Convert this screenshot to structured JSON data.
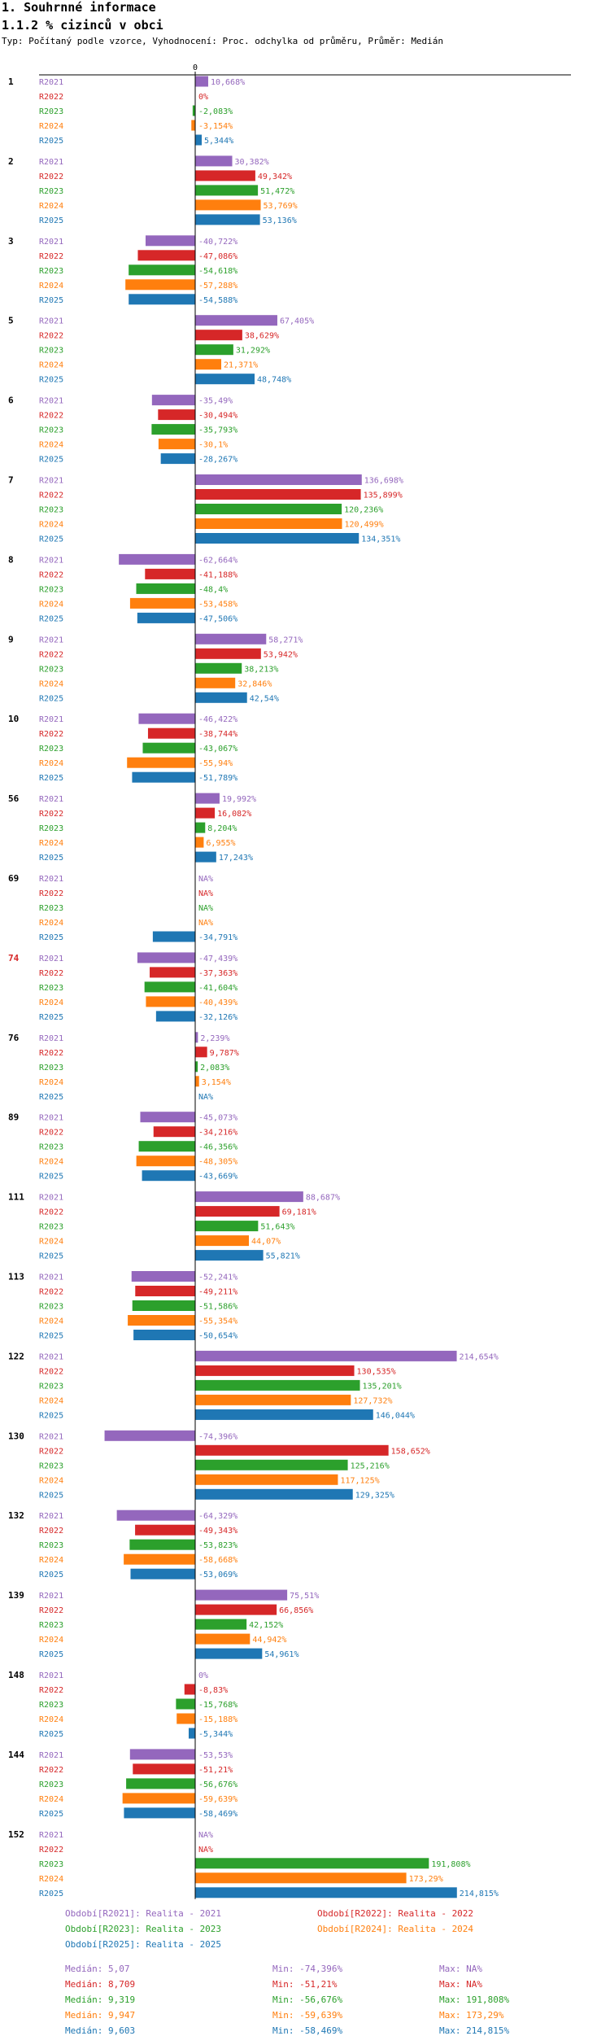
{
  "header": {
    "title": "1. Souhrnné informace",
    "subtitle": "1.1.2 % cizinců v obci",
    "description": "Typ: Počítaný podle vzorce, Vyhodnocení: Proc. odchylka od průměru, Průměr: Medián"
  },
  "colors": {
    "R2021": "#9467bd",
    "R2022": "#d62728",
    "R2023": "#2ca02c",
    "R2024": "#ff7f0e",
    "R2025": "#1f77b4",
    "highlight": "#d62728"
  },
  "chart_data": {
    "type": "bar",
    "orientation": "horizontal",
    "title": "1.1.2 % cizinců v obci",
    "zero_label": "0",
    "series_names": [
      "R2021",
      "R2022",
      "R2023",
      "R2024",
      "R2025"
    ],
    "groups": [
      {
        "id": "1",
        "highlight": false,
        "values": [
          10.668,
          0,
          -2.083,
          -3.154,
          5.344
        ],
        "labels": [
          "10,668%",
          "0%",
          "-2,083%",
          "-3,154%",
          "5,344%"
        ]
      },
      {
        "id": "2",
        "highlight": false,
        "values": [
          30.382,
          49.342,
          51.472,
          53.769,
          53.136
        ],
        "labels": [
          "30,382%",
          "49,342%",
          "51,472%",
          "53,769%",
          "53,136%"
        ]
      },
      {
        "id": "3",
        "highlight": false,
        "values": [
          -40.722,
          -47.086,
          -54.618,
          -57.288,
          -54.588
        ],
        "labels": [
          "-40,722%",
          "-47,086%",
          "-54,618%",
          "-57,288%",
          "-54,588%"
        ]
      },
      {
        "id": "5",
        "highlight": false,
        "values": [
          67.405,
          38.629,
          31.292,
          21.371,
          48.748
        ],
        "labels": [
          "67,405%",
          "38,629%",
          "31,292%",
          "21,371%",
          "48,748%"
        ]
      },
      {
        "id": "6",
        "highlight": false,
        "values": [
          -35.49,
          -30.494,
          -35.793,
          -30.1,
          -28.267
        ],
        "labels": [
          "-35,49%",
          "-30,494%",
          "-35,793%",
          "-30,1%",
          "-28,267%"
        ]
      },
      {
        "id": "7",
        "highlight": false,
        "values": [
          136.698,
          135.899,
          120.236,
          120.499,
          134.351
        ],
        "labels": [
          "136,698%",
          "135,899%",
          "120,236%",
          "120,499%",
          "134,351%"
        ]
      },
      {
        "id": "8",
        "highlight": false,
        "values": [
          -62.664,
          -41.188,
          -48.4,
          -53.458,
          -47.506
        ],
        "labels": [
          "-62,664%",
          "-41,188%",
          "-48,4%",
          "-53,458%",
          "-47,506%"
        ]
      },
      {
        "id": "9",
        "highlight": false,
        "values": [
          58.271,
          53.942,
          38.213,
          32.846,
          42.54
        ],
        "labels": [
          "58,271%",
          "53,942%",
          "38,213%",
          "32,846%",
          "42,54%"
        ]
      },
      {
        "id": "10",
        "highlight": false,
        "values": [
          -46.422,
          -38.744,
          -43.067,
          -55.94,
          -51.789
        ],
        "labels": [
          "-46,422%",
          "-38,744%",
          "-43,067%",
          "-55,94%",
          "-51,789%"
        ]
      },
      {
        "id": "56",
        "highlight": false,
        "values": [
          19.992,
          16.082,
          8.204,
          6.955,
          17.243
        ],
        "labels": [
          "19,992%",
          "16,082%",
          "8,204%",
          "6,955%",
          "17,243%"
        ]
      },
      {
        "id": "69",
        "highlight": false,
        "values": [
          null,
          null,
          null,
          null,
          -34.791
        ],
        "labels": [
          "NA%",
          "NA%",
          "NA%",
          "NA%",
          "-34,791%"
        ]
      },
      {
        "id": "74",
        "highlight": true,
        "values": [
          -47.439,
          -37.363,
          -41.604,
          -40.439,
          -32.126
        ],
        "labels": [
          "-47,439%",
          "-37,363%",
          "-41,604%",
          "-40,439%",
          "-32,126%"
        ]
      },
      {
        "id": "76",
        "highlight": false,
        "values": [
          2.239,
          9.787,
          2.083,
          3.154,
          null
        ],
        "labels": [
          "2,239%",
          "9,787%",
          "2,083%",
          "3,154%",
          "NA%"
        ]
      },
      {
        "id": "89",
        "highlight": false,
        "values": [
          -45.073,
          -34.216,
          -46.356,
          -48.305,
          -43.669
        ],
        "labels": [
          "-45,073%",
          "-34,216%",
          "-46,356%",
          "-48,305%",
          "-43,669%"
        ]
      },
      {
        "id": "111",
        "highlight": false,
        "values": [
          88.687,
          69.181,
          51.643,
          44.07,
          55.821
        ],
        "labels": [
          "88,687%",
          "69,181%",
          "51,643%",
          "44,07%",
          "55,821%"
        ]
      },
      {
        "id": "113",
        "highlight": false,
        "values": [
          -52.241,
          -49.211,
          -51.586,
          -55.354,
          -50.654
        ],
        "labels": [
          "-52,241%",
          "-49,211%",
          "-51,586%",
          "-55,354%",
          "-50,654%"
        ]
      },
      {
        "id": "122",
        "highlight": false,
        "values": [
          214.654,
          130.535,
          135.201,
          127.732,
          146.044
        ],
        "labels": [
          "214,654%",
          "130,535%",
          "135,201%",
          "127,732%",
          "146,044%"
        ]
      },
      {
        "id": "130",
        "highlight": false,
        "values": [
          -74.396,
          158.652,
          125.216,
          117.125,
          129.325
        ],
        "labels": [
          "-74,396%",
          "158,652%",
          "125,216%",
          "117,125%",
          "129,325%"
        ]
      },
      {
        "id": "132",
        "highlight": false,
        "values": [
          -64.329,
          -49.343,
          -53.823,
          -58.668,
          -53.069
        ],
        "labels": [
          "-64,329%",
          "-49,343%",
          "-53,823%",
          "-58,668%",
          "-53,069%"
        ]
      },
      {
        "id": "139",
        "highlight": false,
        "values": [
          75.51,
          66.856,
          42.152,
          44.942,
          54.961
        ],
        "labels": [
          "75,51%",
          "66,856%",
          "42,152%",
          "44,942%",
          "54,961%"
        ]
      },
      {
        "id": "148",
        "highlight": false,
        "values": [
          0,
          -8.83,
          -15.768,
          -15.188,
          -5.344
        ],
        "labels": [
          "0%",
          "-8,83%",
          "-15,768%",
          "-15,188%",
          "-5,344%"
        ]
      },
      {
        "id": "144",
        "highlight": false,
        "values": [
          -53.53,
          -51.21,
          -56.676,
          -59.639,
          -58.469
        ],
        "labels": [
          "-53,53%",
          "-51,21%",
          "-56,676%",
          "-59,639%",
          "-58,469%"
        ]
      },
      {
        "id": "152",
        "highlight": false,
        "values": [
          null,
          null,
          191.808,
          173.29,
          214.815
        ],
        "labels": [
          "NA%",
          "NA%",
          "191,808%",
          "173,29%",
          "214,815%"
        ]
      }
    ],
    "x_range": [
      -76,
      216
    ],
    "legend": [
      {
        "key": "R2021",
        "text": "Období[R2021]: Realita - 2021"
      },
      {
        "key": "R2022",
        "text": "Období[R2022]: Realita - 2022"
      },
      {
        "key": "R2023",
        "text": "Období[R2023]: Realita - 2023"
      },
      {
        "key": "R2024",
        "text": "Období[R2024]: Realita - 2024"
      },
      {
        "key": "R2025",
        "text": "Období[R2025]: Realita - 2025"
      }
    ],
    "stats": [
      {
        "key": "R2021",
        "median": "Medián: 5,07",
        "min": "Min: -74,396%",
        "max": "Max: NA%"
      },
      {
        "key": "R2022",
        "median": "Medián: 8,709",
        "min": "Min: -51,21%",
        "max": "Max: NA%"
      },
      {
        "key": "R2023",
        "median": "Medián: 9,319",
        "min": "Min: -56,676%",
        "max": "Max: 191,808%"
      },
      {
        "key": "R2024",
        "median": "Medián: 9,947",
        "min": "Min: -59,639%",
        "max": "Max: 173,29%"
      },
      {
        "key": "R2025",
        "median": "Medián: 9,603",
        "min": "Min: -58,469%",
        "max": "Max: 214,815%"
      }
    ]
  }
}
